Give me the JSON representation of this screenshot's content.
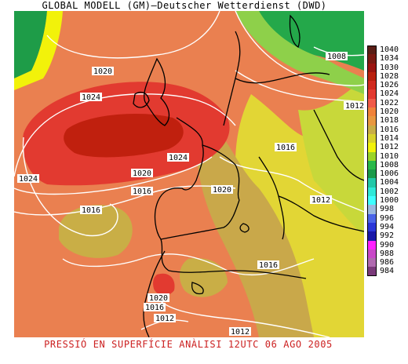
{
  "header": {
    "title": "GLOBAL MODELL (GM)—Deutscher Wetterdienst (DWD)"
  },
  "footer": {
    "caption": "PRESSIÓ EN SUPERFÍCIE   ANÀLISI 12UTC 06 AGO 2005"
  },
  "legend": {
    "levels": [
      {
        "value": "1040",
        "color": "#5a1e16"
      },
      {
        "value": "1034",
        "color": "#7a1a12"
      },
      {
        "value": "1030",
        "color": "#9a1410"
      },
      {
        "value": "1028",
        "color": "#b8200e"
      },
      {
        "value": "1026",
        "color": "#d02a1e"
      },
      {
        "value": "1024",
        "color": "#e23a30"
      },
      {
        "value": "1022",
        "color": "#f05a48"
      },
      {
        "value": "1020",
        "color": "#f0823a"
      },
      {
        "value": "1018",
        "color": "#e89840"
      },
      {
        "value": "1016",
        "color": "#c9ae46"
      },
      {
        "value": "1014",
        "color": "#d9d22c"
      },
      {
        "value": "1012",
        "color": "#f2f20a"
      },
      {
        "value": "1010",
        "color": "#9ad428"
      },
      {
        "value": "1008",
        "color": "#2ab84a"
      },
      {
        "value": "1006",
        "color": "#1a9a4a"
      },
      {
        "value": "1004",
        "color": "#22c8a8"
      },
      {
        "value": "1002",
        "color": "#30e8d8"
      },
      {
        "value": "1000",
        "color": "#40ffff"
      },
      {
        "value": "998",
        "color": "#9ab8e0"
      },
      {
        "value": "996",
        "color": "#4a64e8"
      },
      {
        "value": "994",
        "color": "#2a36d8"
      },
      {
        "value": "992",
        "color": "#1818a8"
      },
      {
        "value": "990",
        "color": "#ff20ff"
      },
      {
        "value": "988",
        "color": "#c848c8"
      },
      {
        "value": "986",
        "color": "#b06ab0"
      },
      {
        "value": "984",
        "color": "#7a3a7a"
      }
    ]
  },
  "isobar_labels": [
    {
      "text": "1020"
    },
    {
      "text": "1024"
    },
    {
      "text": "1024"
    },
    {
      "text": "1024"
    },
    {
      "text": "1020"
    },
    {
      "text": "1016"
    },
    {
      "text": "1020"
    },
    {
      "text": "1016"
    },
    {
      "text": "1016"
    },
    {
      "text": "1012"
    },
    {
      "text": "1008"
    },
    {
      "text": "1012"
    },
    {
      "text": "1016"
    },
    {
      "text": "1020"
    },
    {
      "text": "1016"
    },
    {
      "text": "1012"
    },
    {
      "text": "1012"
    }
  ]
}
